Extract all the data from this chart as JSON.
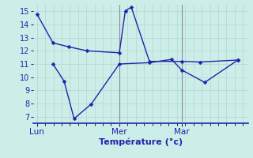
{
  "background_color": "#cceee8",
  "grid_color": "#b8d8d4",
  "line_color": "#2222aa",
  "xlabel": "Température (°c)",
  "xlabel_color": "#2222aa",
  "ylim": [
    6.5,
    15.5
  ],
  "yticks": [
    7,
    8,
    9,
    10,
    11,
    12,
    13,
    14,
    15
  ],
  "day_labels": [
    "Lun",
    "Mer",
    "Mar"
  ],
  "day_positions": [
    0.0,
    0.41,
    0.72
  ],
  "vline_positions": [
    0.41,
    0.72
  ],
  "line1_x": [
    0.0,
    0.08,
    0.16,
    0.25,
    0.41,
    0.44,
    0.47,
    0.56,
    0.72,
    0.81,
    1.0
  ],
  "line1_y": [
    14.8,
    12.6,
    12.3,
    12.0,
    11.85,
    15.05,
    15.3,
    11.2,
    11.2,
    11.15,
    11.3
  ],
  "line2_x": [
    0.08,
    0.135,
    0.185,
    0.27,
    0.41,
    0.56,
    0.67,
    0.72,
    0.835,
    1.0
  ],
  "line2_y": [
    11.0,
    9.7,
    6.85,
    7.95,
    11.0,
    11.1,
    11.35,
    10.55,
    9.6,
    11.3
  ],
  "marker_size": 2.5,
  "line_width": 1.0,
  "tick_color": "#2222aa",
  "spine_color": "#2222aa",
  "vline_color": "#888899",
  "xlabel_fontsize": 8,
  "xlabel_fontweight": "bold",
  "ytick_fontsize": 7,
  "xtick_fontsize": 7.5
}
